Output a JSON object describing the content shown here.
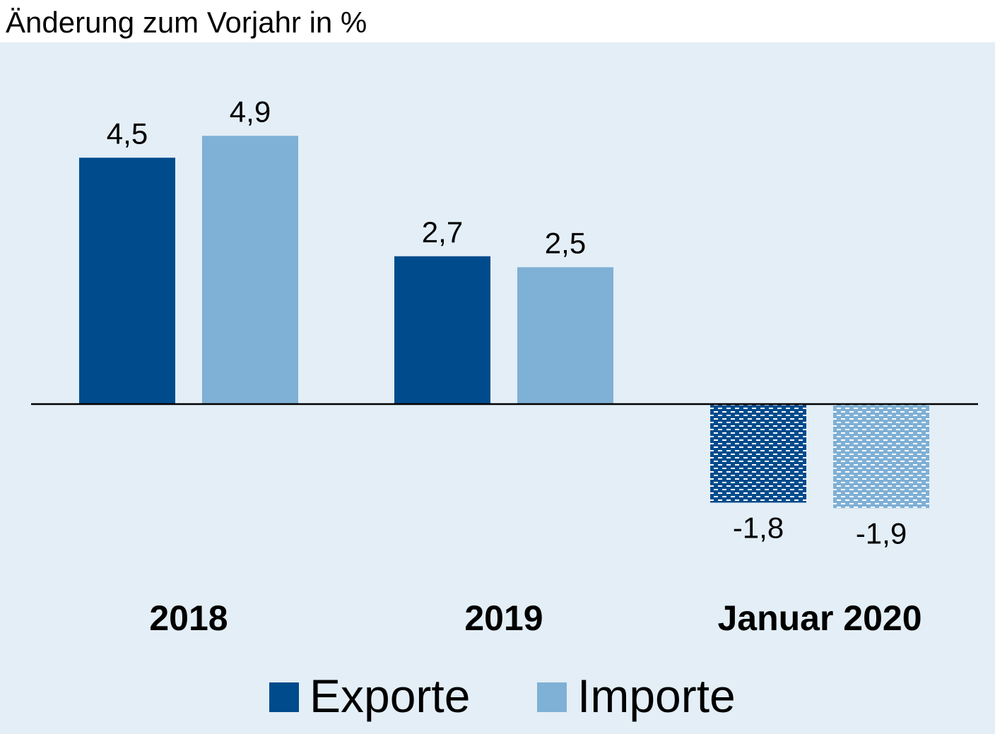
{
  "chart_data": {
    "type": "bar",
    "ylabel": "Änderung zum Vorjahr in %",
    "categories": [
      "2018",
      "2019",
      "Januar 2020"
    ],
    "series": [
      {
        "name": "Exporte",
        "values": [
          4.5,
          2.7,
          -1.8
        ],
        "value_labels": [
          "4,5",
          "2,7",
          "-1,8"
        ],
        "color": "#004b8c"
      },
      {
        "name": "Importe",
        "values": [
          4.9,
          2.5,
          -1.9
        ],
        "value_labels": [
          "4,9",
          "2,5",
          "-1,9"
        ],
        "color": "#7fb0d5"
      }
    ],
    "hatched_categories": [
      "Januar 2020"
    ],
    "grid": false,
    "legend_position": "bottom",
    "background_color": "#e3eef6",
    "axis_line_color": "#000000"
  }
}
